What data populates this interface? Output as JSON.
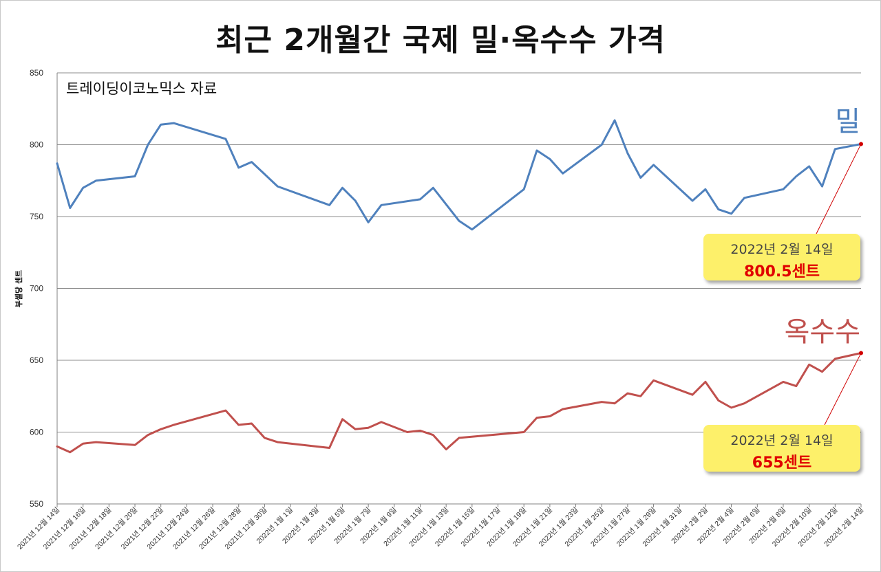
{
  "title": "최근 2개월간 국제 밀·옥수수 가격",
  "source_note": "트레이딩이코노믹스 자료",
  "callouts": {
    "wheat": {
      "date": "2022년 2월 14일",
      "value": "800.5센트"
    },
    "corn": {
      "date": "2022년 2월 14일",
      "value": "655센트"
    }
  },
  "colors": {
    "wheat": "#4f81bd",
    "corn": "#c0504d",
    "marker": "#d00000",
    "callout_bg": "#fdf06a"
  },
  "chart_data": {
    "type": "line",
    "title": "최근 2개월간 국제 밀·옥수수 가격",
    "ylabel": "부셸당 센트",
    "xlabel": "",
    "ylim": [
      550,
      850
    ],
    "yticks": [
      550,
      600,
      650,
      700,
      750,
      800,
      850
    ],
    "grid": true,
    "xlim": [
      "2021-12-14",
      "2022-02-14"
    ],
    "xtick_dates": [
      "2021-12-14",
      "2021-12-16",
      "2021-12-18",
      "2021-12-20",
      "2021-12-22",
      "2021-12-24",
      "2021-12-26",
      "2021-12-28",
      "2021-12-30",
      "2022-01-01",
      "2022-01-03",
      "2022-01-05",
      "2022-01-07",
      "2022-01-09",
      "2022-01-11",
      "2022-01-13",
      "2022-01-15",
      "2022-01-17",
      "2022-01-19",
      "2022-01-21",
      "2022-01-23",
      "2022-01-25",
      "2022-01-27",
      "2022-01-29",
      "2022-01-31",
      "2022-02-02",
      "2022-02-04",
      "2022-02-06",
      "2022-02-08",
      "2022-02-10",
      "2022-02-12",
      "2022-02-14"
    ],
    "xtick_labels": [
      "2021년 12월 14일",
      "2021년 12월 16일",
      "2021년 12월 18일",
      "2021년 12월 20일",
      "2021년 12월 22일",
      "2021년 12월 24일",
      "2021년 12월 26일",
      "2021년 12월 28일",
      "2021년 12월 30일",
      "2022년 1월 1일",
      "2022년 1월 3일",
      "2022년 1월 5일",
      "2022년 1월 7일",
      "2022년 1월 9일",
      "2022년 1월 11일",
      "2022년 1월 13일",
      "2022년 1월 15일",
      "2022년 1월 17일",
      "2022년 1월 19일",
      "2022년 1월 21일",
      "2022년 1월 23일",
      "2022년 1월 25일",
      "2022년 1월 27일",
      "2022년 1월 29일",
      "2022년 1월 31일",
      "2022년 2월 2일",
      "2022년 2월 4일",
      "2022년 2월 6일",
      "2022년 2월 8일",
      "2022년 2월 10일",
      "2022년 2월 12일",
      "2022년 2월 14일"
    ],
    "series": [
      {
        "name": "밀",
        "dates": [
          "2021-12-14",
          "2021-12-15",
          "2021-12-16",
          "2021-12-17",
          "2021-12-20",
          "2021-12-21",
          "2021-12-22",
          "2021-12-23",
          "2021-12-27",
          "2021-12-28",
          "2021-12-29",
          "2021-12-31",
          "2022-01-04",
          "2022-01-05",
          "2022-01-06",
          "2022-01-07",
          "2022-01-08",
          "2022-01-11",
          "2022-01-12",
          "2022-01-14",
          "2022-01-15",
          "2022-01-19",
          "2022-01-20",
          "2022-01-21",
          "2022-01-22",
          "2022-01-25",
          "2022-01-26",
          "2022-01-27",
          "2022-01-28",
          "2022-01-29",
          "2022-02-01",
          "2022-02-02",
          "2022-02-03",
          "2022-02-04",
          "2022-02-05",
          "2022-02-08",
          "2022-02-09",
          "2022-02-10",
          "2022-02-11",
          "2022-02-12",
          "2022-02-14"
        ],
        "values": [
          787,
          756,
          770,
          775,
          778,
          800,
          814,
          815,
          804,
          784,
          788,
          771,
          758,
          770,
          761,
          746,
          758,
          762,
          770,
          747,
          741,
          769,
          796,
          790,
          780,
          800,
          817,
          794,
          777,
          786,
          761,
          769,
          755,
          752,
          763,
          769,
          778,
          785,
          771,
          797,
          800.5
        ]
      },
      {
        "name": "옥수수",
        "dates": [
          "2021-12-14",
          "2021-12-15",
          "2021-12-16",
          "2021-12-17",
          "2021-12-20",
          "2021-12-21",
          "2021-12-22",
          "2021-12-23",
          "2021-12-27",
          "2021-12-28",
          "2021-12-29",
          "2021-12-30",
          "2021-12-31",
          "2022-01-04",
          "2022-01-05",
          "2022-01-06",
          "2022-01-07",
          "2022-01-08",
          "2022-01-10",
          "2022-01-11",
          "2022-01-12",
          "2022-01-13",
          "2022-01-14",
          "2022-01-19",
          "2022-01-20",
          "2022-01-21",
          "2022-01-22",
          "2022-01-25",
          "2022-01-26",
          "2022-01-27",
          "2022-01-28",
          "2022-01-29",
          "2022-02-01",
          "2022-02-02",
          "2022-02-03",
          "2022-02-04",
          "2022-02-05",
          "2022-02-08",
          "2022-02-09",
          "2022-02-10",
          "2022-02-11",
          "2022-02-12",
          "2022-02-14"
        ],
        "values": [
          590,
          586,
          592,
          593,
          591,
          598,
          602,
          605,
          615,
          605,
          606,
          596,
          593,
          589,
          609,
          602,
          603,
          607,
          600,
          601,
          598,
          588,
          596,
          600,
          610,
          611,
          616,
          621,
          620,
          627,
          625,
          636,
          626,
          635,
          622,
          617,
          620,
          635,
          632,
          647,
          642,
          651,
          655
        ]
      }
    ]
  }
}
